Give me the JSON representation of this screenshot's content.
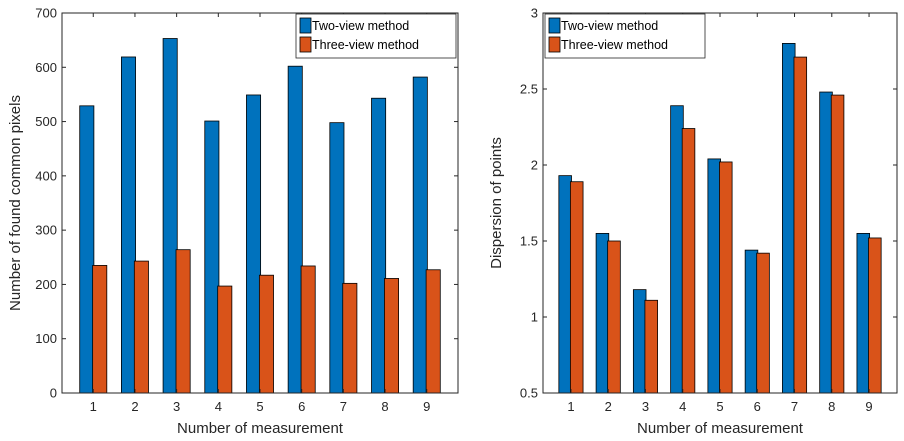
{
  "colors": {
    "two_view": "#0072BD",
    "three_view": "#D95319",
    "axis": "#262626"
  },
  "chart_data": [
    {
      "type": "bar",
      "categories": [
        "1",
        "2",
        "3",
        "4",
        "5",
        "6",
        "7",
        "8",
        "9"
      ],
      "series": [
        {
          "name": "Two-view method",
          "values": [
            529,
            619,
            653,
            501,
            549,
            602,
            498,
            543,
            582
          ]
        },
        {
          "name": "Three-view method",
          "values": [
            235,
            243,
            264,
            197,
            217,
            234,
            202,
            211,
            227
          ]
        }
      ],
      "title": "",
      "xlabel": "Number of measurement",
      "ylabel": "Number of found common pixels",
      "ylim": [
        0,
        700
      ],
      "yticks": [
        "0",
        "100",
        "200",
        "300",
        "400",
        "500",
        "600",
        "700"
      ],
      "grid": false,
      "legend": "top-right"
    },
    {
      "type": "bar",
      "categories": [
        "1",
        "2",
        "3",
        "4",
        "5",
        "6",
        "7",
        "8",
        "9"
      ],
      "series": [
        {
          "name": "Two-view method",
          "values": [
            1.93,
            1.55,
            1.18,
            2.39,
            2.04,
            1.44,
            2.8,
            2.48,
            1.55
          ]
        },
        {
          "name": "Three-view method",
          "values": [
            1.89,
            1.5,
            1.11,
            2.24,
            2.02,
            1.42,
            2.71,
            2.46,
            1.52
          ]
        }
      ],
      "title": "",
      "xlabel": "Number of measurement",
      "ylabel": "Dispersion of points",
      "ylim": [
        0.5,
        3
      ],
      "yticks": [
        "0.5",
        "1",
        "1.5",
        "2",
        "2.5",
        "3"
      ],
      "grid": false,
      "legend": "top-left"
    }
  ]
}
